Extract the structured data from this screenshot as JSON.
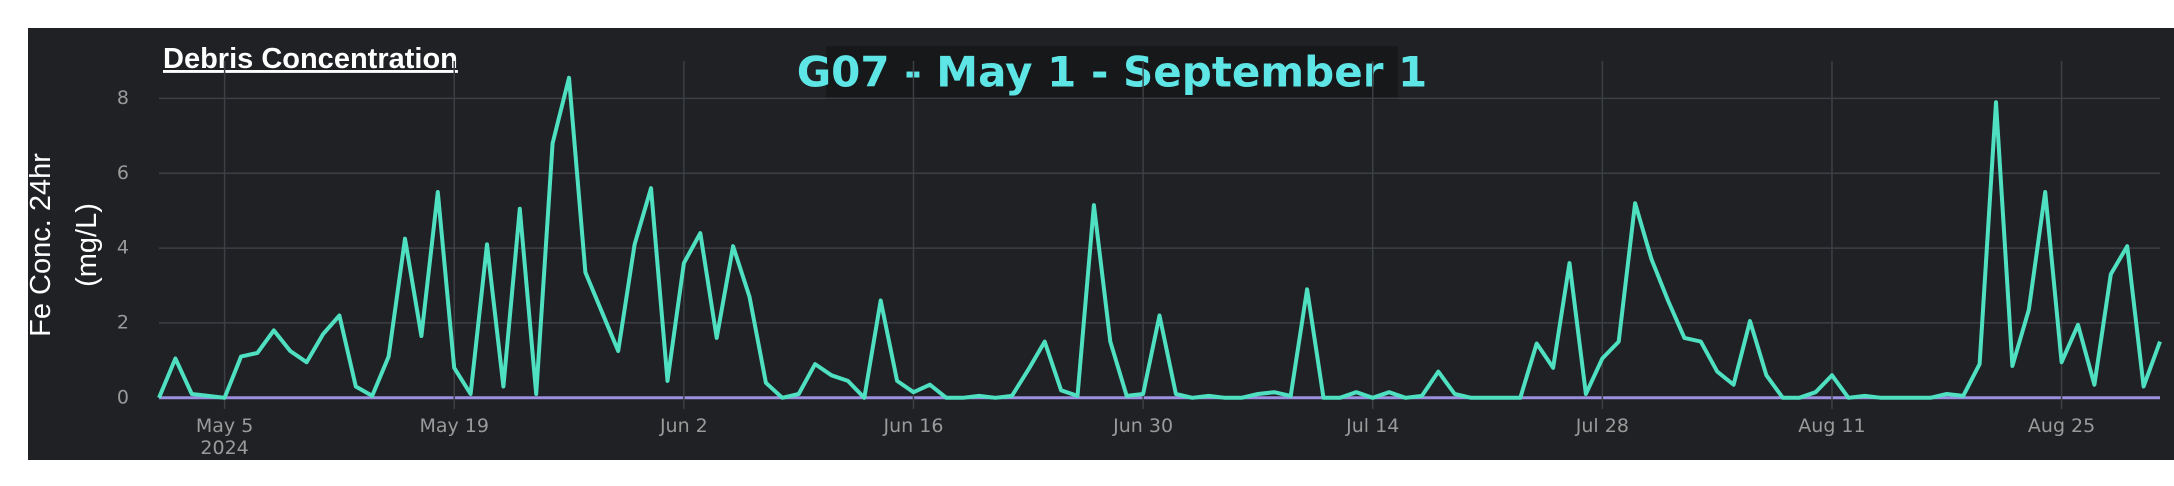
{
  "chart_data": {
    "type": "line",
    "title": "G07 - May 1 - September 1",
    "panel_title": "Debris Concentration",
    "ylabel": "Fe Conc. 24hr\n(mg/L)",
    "x": [
      "2024-05-01",
      "2024-05-02",
      "2024-05-03",
      "2024-05-04",
      "2024-05-05",
      "2024-05-06",
      "2024-05-07",
      "2024-05-08",
      "2024-05-09",
      "2024-05-10",
      "2024-05-11",
      "2024-05-12",
      "2024-05-13",
      "2024-05-14",
      "2024-05-15",
      "2024-05-16",
      "2024-05-17",
      "2024-05-18",
      "2024-05-19",
      "2024-05-20",
      "2024-05-21",
      "2024-05-22",
      "2024-05-23",
      "2024-05-24",
      "2024-05-25",
      "2024-05-26",
      "2024-05-27",
      "2024-05-28",
      "2024-05-29",
      "2024-05-30",
      "2024-05-31",
      "2024-06-01",
      "2024-06-02",
      "2024-06-03",
      "2024-06-04",
      "2024-06-05",
      "2024-06-06",
      "2024-06-07",
      "2024-06-08",
      "2024-06-09",
      "2024-06-10",
      "2024-06-11",
      "2024-06-12",
      "2024-06-13",
      "2024-06-14",
      "2024-06-15",
      "2024-06-16",
      "2024-06-17",
      "2024-06-18",
      "2024-06-19",
      "2024-06-20",
      "2024-06-21",
      "2024-06-22",
      "2024-06-23",
      "2024-06-24",
      "2024-06-25",
      "2024-06-26",
      "2024-06-27",
      "2024-06-28",
      "2024-06-29",
      "2024-06-30",
      "2024-07-01",
      "2024-07-02",
      "2024-07-03",
      "2024-07-04",
      "2024-07-05",
      "2024-07-06",
      "2024-07-07",
      "2024-07-08",
      "2024-07-09",
      "2024-07-10",
      "2024-07-11",
      "2024-07-12",
      "2024-07-13",
      "2024-07-14",
      "2024-07-15",
      "2024-07-16",
      "2024-07-17",
      "2024-07-18",
      "2024-07-19",
      "2024-07-20",
      "2024-07-21",
      "2024-07-22",
      "2024-07-23",
      "2024-07-24",
      "2024-07-25",
      "2024-07-26",
      "2024-07-27",
      "2024-07-28",
      "2024-07-29",
      "2024-07-30",
      "2024-07-31",
      "2024-08-01",
      "2024-08-02",
      "2024-08-03",
      "2024-08-04",
      "2024-08-05",
      "2024-08-06",
      "2024-08-07",
      "2024-08-08",
      "2024-08-09",
      "2024-08-10",
      "2024-08-11",
      "2024-08-12",
      "2024-08-13",
      "2024-08-14",
      "2024-08-15",
      "2024-08-16",
      "2024-08-17",
      "2024-08-18",
      "2024-08-19",
      "2024-08-20",
      "2024-08-21",
      "2024-08-22",
      "2024-08-23",
      "2024-08-24",
      "2024-08-25",
      "2024-08-26",
      "2024-08-27",
      "2024-08-28",
      "2024-08-29",
      "2024-08-30",
      "2024-08-31"
    ],
    "series": [
      {
        "color": "#4ee0c0",
        "values": [
          0,
          1.05,
          0.1,
          0.05,
          0,
          1.1,
          1.2,
          1.8,
          1.25,
          0.95,
          1.7,
          2.2,
          0.3,
          0.05,
          1.1,
          4.25,
          1.65,
          5.5,
          0.8,
          0.1,
          4.1,
          0.3,
          5.05,
          0.1,
          6.8,
          8.55,
          3.35,
          2.3,
          1.25,
          4.1,
          5.6,
          0.45,
          3.6,
          4.4,
          1.6,
          4.05,
          2.7,
          0.4,
          0,
          0.1,
          0.9,
          0.6,
          0.45,
          0,
          2.6,
          0.45,
          0.15,
          0.35,
          0,
          0,
          0.05,
          0,
          0.05,
          0.75,
          1.5,
          0.2,
          0.05,
          5.15,
          1.5,
          0.05,
          0.1,
          2.2,
          0.1,
          0,
          0.05,
          0,
          0,
          0.1,
          0.15,
          0.05,
          2.9,
          0,
          0,
          0.15,
          0,
          0.15,
          0,
          0.05,
          0.7,
          0.1,
          0,
          0,
          0,
          0,
          1.45,
          0.8,
          3.6,
          0.1,
          1.05,
          1.5,
          5.2,
          3.7,
          2.6,
          1.6,
          1.5,
          0.7,
          0.35,
          2.05,
          0.6,
          0,
          0,
          0.15,
          0.6,
          0,
          0.05,
          0,
          0,
          0,
          0,
          0.1,
          0.05,
          0.9,
          7.9,
          0.85,
          2.35,
          5.5,
          0.95,
          1.95,
          0.35,
          3.3,
          4.05,
          0.3,
          1.5
        ]
      }
    ],
    "xlim": [
      "2024-05-01",
      "2024-08-31"
    ],
    "xticks": [
      {
        "value": "2024-05-05",
        "label": "May 5\n2024"
      },
      {
        "value": "2024-05-19",
        "label": "May 19"
      },
      {
        "value": "2024-06-02",
        "label": "Jun 2"
      },
      {
        "value": "2024-06-16",
        "label": "Jun 16"
      },
      {
        "value": "2024-06-30",
        "label": "Jun 30"
      },
      {
        "value": "2024-07-14",
        "label": "Jul 14"
      },
      {
        "value": "2024-07-28",
        "label": "Jul 28"
      },
      {
        "value": "2024-08-11",
        "label": "Aug 11"
      },
      {
        "value": "2024-08-25",
        "label": "Aug 25"
      }
    ],
    "ylim": [
      -0.3,
      9
    ],
    "yticks": [
      0,
      2,
      4,
      6,
      8
    ],
    "grid": true,
    "zero_line_color": "#9b8fe0"
  }
}
